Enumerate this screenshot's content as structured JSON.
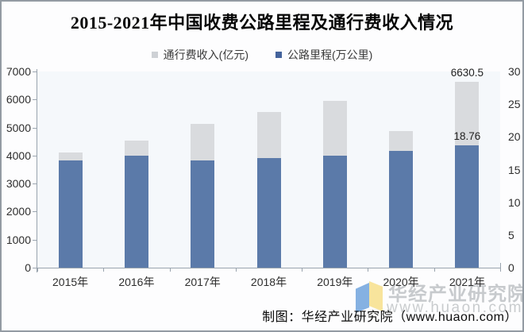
{
  "title": "2015-2021年中国收费公路里程及通行费收入情况",
  "legend": {
    "items": [
      {
        "label": "通行费收入(亿元)"
      },
      {
        "label": "公路里程(万公里)"
      }
    ]
  },
  "chart_data": {
    "type": "bar",
    "title": "2015-2021年中国收费公路里程及通行费收入情况",
    "bar_style": "overlapped-dual-axis",
    "grid": false,
    "legend_position": "top",
    "categories": [
      "2015年",
      "2016年",
      "2017年",
      "2018年",
      "2019年",
      "2020年",
      "2021年"
    ],
    "series": [
      {
        "name": "通行费收入(亿元)",
        "axis": "left",
        "unit": "亿元",
        "color": "#d9dbde",
        "values": [
          4100,
          4550,
          5130,
          5550,
          5940,
          4870,
          6630.5
        ]
      },
      {
        "name": "公路里程(万公里)",
        "axis": "right",
        "unit": "万公里",
        "color": "#5b7aa9",
        "values": [
          16.4,
          17.1,
          16.4,
          16.8,
          17.1,
          17.9,
          18.76
        ]
      }
    ],
    "left_axis": {
      "min": 0,
      "max": 7000,
      "step": 1000
    },
    "right_axis": {
      "min": 0,
      "max": 30,
      "step": 5
    },
    "annotations": [
      {
        "text": "6630.5",
        "category_index": 6,
        "series_index": 0
      },
      {
        "text": "18.76",
        "category_index": 6,
        "series_index": 1
      }
    ]
  },
  "watermark": {
    "brand": "华经产业研究院",
    "site": "www.huaon.com"
  },
  "caption": "制图：华经产业研究院（www.huaon.com）",
  "colors": {
    "toll_revenue_bar": "#d9dbde",
    "road_mileage_bar": "#5b7aa9",
    "legend_revenue_swatch": "#ced1d5",
    "legend_mileage_swatch": "#44639c",
    "plot_background": "#f5f8fb",
    "axis": "#9aa4ae",
    "tick_text": "#2e2e2e",
    "annotation_text": "#222222",
    "watermark_gray": "#c7cacd",
    "logo_blue": "#85b1e2",
    "logo_yellow": "#f8e49c"
  }
}
